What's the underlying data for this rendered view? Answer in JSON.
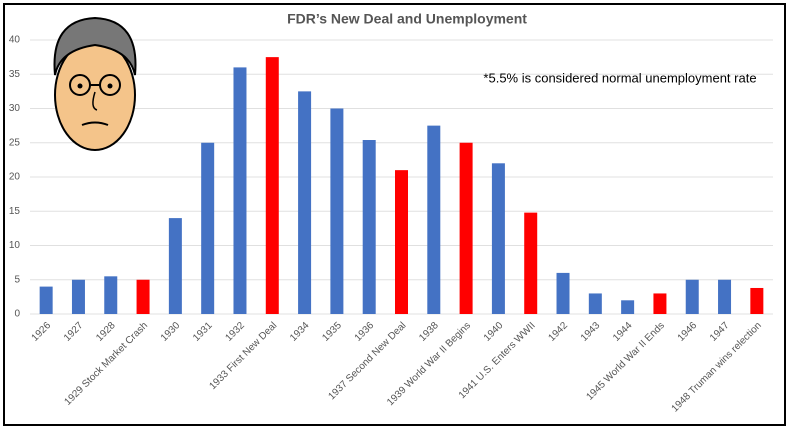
{
  "chart_data": {
    "type": "bar",
    "title": "FDR’s New Deal and Unemployment",
    "annotation": "*5.5%  is considered normal unemployment rate",
    "categories": [
      "1926",
      "1927",
      "1928",
      "1929 Stock Market Crash",
      "1930",
      "1931",
      "1932",
      "1933 First New Deal",
      "1934",
      "1935",
      "1936",
      "1937 Second New Deal",
      "1938",
      "1939 World War II Begins",
      "1940",
      "1941 U.S. Enters WWII",
      "1942",
      "1943",
      "1944",
      "1945 World War II Ends",
      "1946",
      "1947",
      "1948 Truman wins relection"
    ],
    "values": [
      4,
      5,
      5.5,
      5,
      14,
      25,
      36,
      37.5,
      32.5,
      30,
      25.4,
      21,
      27.5,
      25,
      22,
      14.8,
      6,
      3,
      2,
      3,
      5,
      5,
      3.8
    ],
    "colors": [
      "#4472c4",
      "#4472c4",
      "#4472c4",
      "#ff0000",
      "#4472c4",
      "#4472c4",
      "#4472c4",
      "#ff0000",
      "#4472c4",
      "#4472c4",
      "#4472c4",
      "#ff0000",
      "#4472c4",
      "#ff0000",
      "#4472c4",
      "#ff0000",
      "#4472c4",
      "#4472c4",
      "#4472c4",
      "#ff0000",
      "#4472c4",
      "#4472c4",
      "#ff0000"
    ],
    "ylim": [
      0,
      40
    ],
    "yticks": [
      0,
      5,
      10,
      15,
      20,
      25,
      30,
      35,
      40
    ],
    "grid": true
  }
}
